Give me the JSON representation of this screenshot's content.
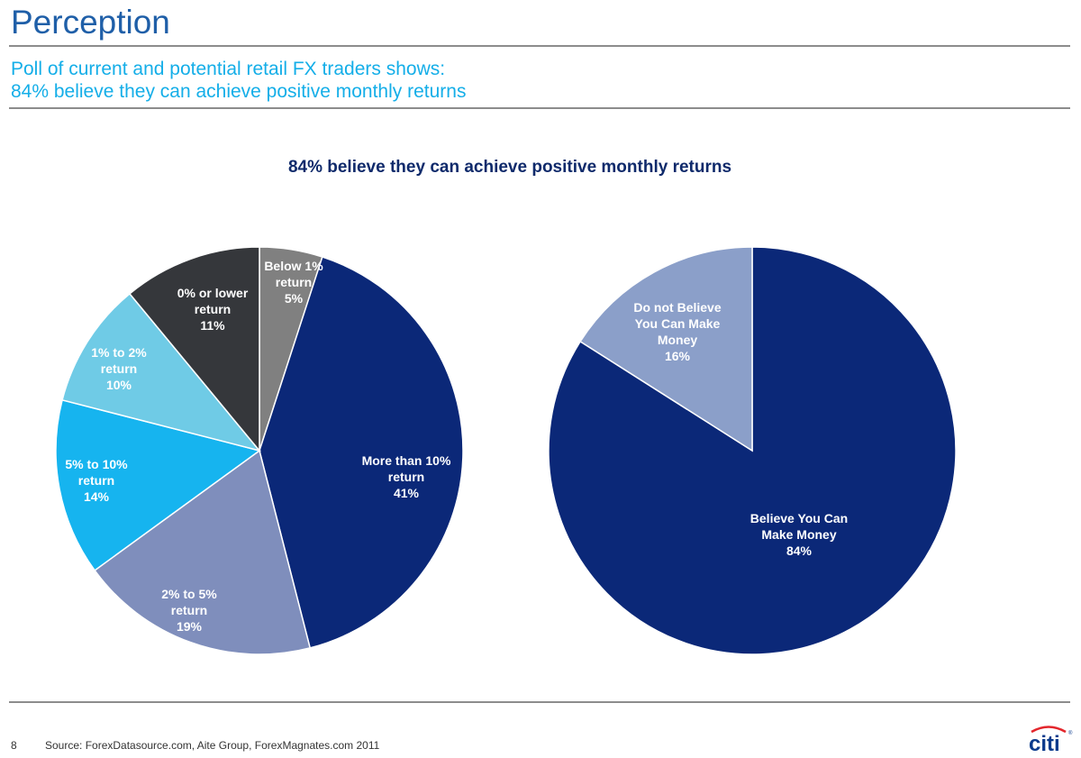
{
  "header": {
    "title": "Perception",
    "subtitle_line1": "Poll of current and potential retail FX traders shows:",
    "subtitle_line2": "84% believe they can achieve positive monthly returns"
  },
  "chart_heading": "84% believe they can achieve positive monthly returns",
  "footer": {
    "page_number": "8",
    "source": "Source: ForexDatasource.com, Aite Group, ForexMagnates.com 2011",
    "logo_text": "citi",
    "logo_mark": "®"
  },
  "chart_data": [
    {
      "type": "pie",
      "title": "",
      "unit": "%",
      "slices": [
        {
          "label": [
            "Below 1%",
            "return",
            "5%"
          ],
          "value": 5,
          "color": "#808080"
        },
        {
          "label": [
            "More than 10%",
            "return",
            "41%"
          ],
          "value": 41,
          "color": "#0b2878"
        },
        {
          "label": [
            "2% to 5%",
            "return",
            "19%"
          ],
          "value": 19,
          "color": "#7f8ebc"
        },
        {
          "label": [
            "5% to 10%",
            "return",
            "14%"
          ],
          "value": 14,
          "color": "#16b4ef"
        },
        {
          "label": [
            "1% to 2%",
            "return",
            "10%"
          ],
          "value": 10,
          "color": "#6fcbe6"
        },
        {
          "label": [
            "0% or lower",
            "return",
            "11%"
          ],
          "value": 11,
          "color": "#35373b"
        }
      ]
    },
    {
      "type": "pie",
      "title": "",
      "unit": "%",
      "slices": [
        {
          "label": [
            "Believe You Can",
            "Make Money",
            "84%"
          ],
          "value": 84,
          "color": "#0b2878"
        },
        {
          "label": [
            "Do not Believe",
            "You Can Make",
            "Money",
            "16%"
          ],
          "value": 16,
          "color": "#8b9fc9"
        }
      ]
    }
  ]
}
